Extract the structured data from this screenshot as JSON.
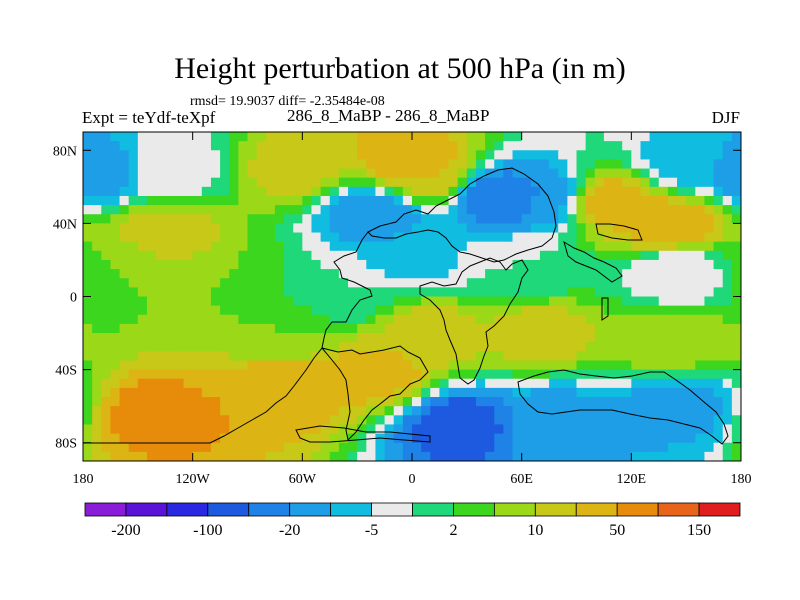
{
  "figure": {
    "title": "Height perturbation at 500 hPa (in m)",
    "rmsd_line": "rmsd= 19.9037 diff= -2.35484e-08",
    "left_label": "Expt = teYdf-teXpf",
    "center_label": "286_8_MaBP - 286_8_MaBP",
    "right_label": "DJF"
  },
  "chart_data": {
    "type": "heatmap",
    "title": "Height perturbation at 500 hPa (in m)",
    "xlabel": "",
    "ylabel": "",
    "xlim": [
      -180,
      180
    ],
    "ylim": [
      -90,
      90
    ],
    "x_ticks": [
      {
        "value": -180,
        "label": "180"
      },
      {
        "value": -120,
        "label": "120W"
      },
      {
        "value": -60,
        "label": "60W"
      },
      {
        "value": 0,
        "label": "0"
      },
      {
        "value": 60,
        "label": "60E"
      },
      {
        "value": 120,
        "label": "120E"
      },
      {
        "value": 180,
        "label": "180"
      }
    ],
    "y_ticks": [
      {
        "value": 80,
        "label": "80N"
      },
      {
        "value": 40,
        "label": "40N"
      },
      {
        "value": 0,
        "label": "0"
      },
      {
        "value": -40,
        "label": "40S"
      },
      {
        "value": -80,
        "label": "80S"
      }
    ],
    "colorbar": {
      "colors": [
        "#8a1ed8",
        "#5a14d8",
        "#2a28e0",
        "#1e5ae0",
        "#1e82e6",
        "#1e9ee6",
        "#10bce0",
        "#eaeaea",
        "#1ed87a",
        "#3cd61e",
        "#9ad818",
        "#c8c818",
        "#dcb414",
        "#e68c0a",
        "#e8641a",
        "#e01e1e"
      ],
      "labels": [
        {
          "boundary": 1,
          "label": "-200"
        },
        {
          "boundary": 3,
          "label": "-100"
        },
        {
          "boundary": 5,
          "label": "-20"
        },
        {
          "boundary": 7,
          "label": "-5"
        },
        {
          "boundary": 9,
          "label": "2"
        },
        {
          "boundary": 11,
          "label": "10"
        },
        {
          "boundary": 13,
          "label": "50"
        },
        {
          "boundary": 15,
          "label": "150"
        }
      ]
    },
    "field_features": [
      {
        "lon": 0,
        "lat": 75,
        "level": 12.5
      },
      {
        "lon": 10,
        "lat": 66,
        "level": 11.5
      },
      {
        "lon": -65,
        "lat": 70,
        "level": 11
      },
      {
        "lon": -175,
        "lat": 68,
        "level": 4.5
      },
      {
        "lon": -130,
        "lat": 70,
        "level": 7
      },
      {
        "lon": -20,
        "lat": 45,
        "level": 4.5
      },
      {
        "lon": 45,
        "lat": 55,
        "level": 3.5
      },
      {
        "lon": 70,
        "lat": 55,
        "level": 4.5
      },
      {
        "lon": 0,
        "lat": 22,
        "level": 6
      },
      {
        "lon": -135,
        "lat": 35,
        "level": 11
      },
      {
        "lon": -160,
        "lat": 12,
        "level": 9.5
      },
      {
        "lon": -100,
        "lat": 5,
        "level": 9.5
      },
      {
        "lon": 140,
        "lat": 40,
        "level": 12.5
      },
      {
        "lon": 110,
        "lat": 52,
        "level": 12
      },
      {
        "lon": 150,
        "lat": 72,
        "level": 6
      },
      {
        "lon": 145,
        "lat": 12,
        "level": 6.5
      },
      {
        "lon": 70,
        "lat": -20,
        "level": 11
      },
      {
        "lon": 140,
        "lat": -25,
        "level": 10.5
      },
      {
        "lon": 10,
        "lat": -20,
        "level": 11
      },
      {
        "lon": -70,
        "lat": -20,
        "level": 9.5
      },
      {
        "lon": -140,
        "lat": -65,
        "level": 13
      },
      {
        "lon": -70,
        "lat": -50,
        "level": 12.5
      },
      {
        "lon": -20,
        "lat": -42,
        "level": 12
      },
      {
        "lon": 25,
        "lat": -70,
        "level": 3
      },
      {
        "lon": 80,
        "lat": -68,
        "level": 5
      },
      {
        "lon": 145,
        "lat": -60,
        "level": 5
      },
      {
        "lon": 60,
        "lat": 15,
        "level": 7.5
      },
      {
        "lon": -40,
        "lat": 2,
        "level": 7.5
      }
    ]
  }
}
